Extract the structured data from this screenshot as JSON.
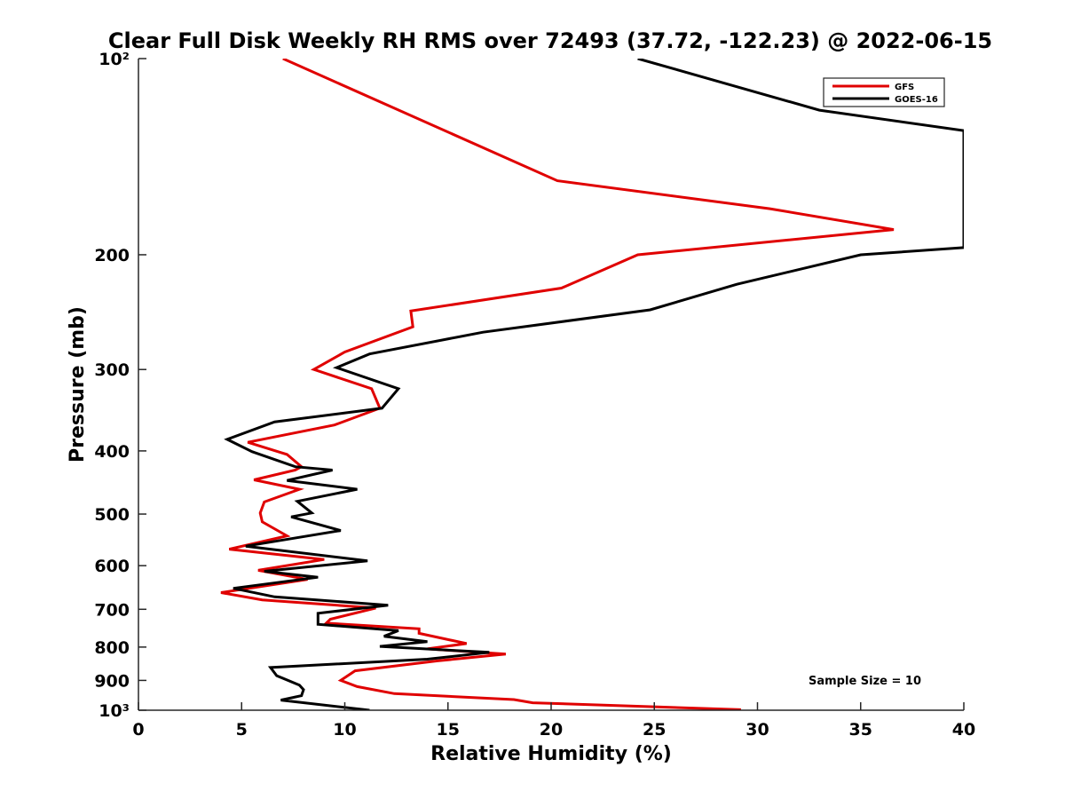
{
  "chart_data": {
    "type": "line",
    "title": "Clear Full Disk Weekly RH RMS over 72493 (37.72, -122.23) @ 2022-06-15",
    "xlabel": "Relative Humidity (%)",
    "ylabel": "Pressure (mb)",
    "xlim": [
      0,
      40
    ],
    "ylim": [
      100,
      1000
    ],
    "y_scale": "log",
    "y_reversed": true,
    "grid": false,
    "legend_position": "top-right",
    "x_ticks": [
      0,
      5,
      10,
      15,
      20,
      25,
      30,
      35,
      40
    ],
    "x_tick_labels": [
      "0",
      "5",
      "10",
      "15",
      "20",
      "25",
      "30",
      "35",
      "40"
    ],
    "y_ticks": [
      100,
      200,
      300,
      400,
      500,
      600,
      700,
      800,
      900,
      1000
    ],
    "y_tick_labels": [
      "10²",
      "200",
      "300",
      "400",
      "500",
      "600",
      "700",
      "800",
      "900",
      "10³"
    ],
    "annotation": "Sample Size = 10",
    "series": [
      {
        "name": "GFS",
        "color": "#e00000",
        "x": [
          7,
          20.3,
          30.6,
          36.6,
          24.2,
          20.5,
          13.2,
          13.3,
          10,
          8.5,
          11.3,
          11.7,
          9.5,
          5.3,
          7.2,
          7.9,
          7.6,
          5.6,
          7.8,
          6.1,
          5.9,
          6.0,
          7.2,
          4.4,
          9.0,
          5.8,
          8.2,
          4.0,
          6.0,
          11.5,
          9.3,
          9.1,
          13.6,
          13.6,
          15.9,
          14.0,
          17.8,
          14.5,
          10.5,
          9.8,
          10.6,
          12.4,
          18.2,
          19.1,
          29.2
        ],
        "y": [
          100,
          154,
          170,
          183,
          200,
          225,
          244,
          258,
          282,
          300,
          321,
          344,
          365,
          388,
          405,
          423,
          428,
          443,
          458,
          479,
          498,
          514,
          540,
          566,
          587,
          610,
          630,
          660,
          677,
          697,
          725,
          735,
          750,
          762,
          790,
          805,
          820,
          840,
          870,
          900,
          920,
          943,
          963,
          974,
          998
        ]
      },
      {
        "name": "GOES-16",
        "color": "#000000",
        "x": [
          24.2,
          33,
          40,
          40,
          35,
          29,
          24.8,
          16.7,
          11.2,
          9.6,
          12.6,
          11.8,
          6.6,
          4.3,
          5.5,
          7.6,
          9.4,
          7.2,
          10.6,
          7.7,
          8.4,
          7.4,
          9.8,
          5.2,
          11.1,
          6.1,
          8.7,
          4.6,
          6.6,
          12.1,
          8.7,
          8.7,
          12.6,
          11.9,
          14.0,
          11.7,
          17.0,
          14.0,
          6.4,
          6.7,
          7.8,
          8.0,
          7.9,
          6.9,
          11.2
        ],
        "y": [
          100,
          120,
          129,
          195,
          200,
          222,
          243,
          263,
          284,
          298,
          321,
          344,
          361,
          384,
          401,
          423,
          428,
          444,
          458,
          478,
          498,
          505,
          530,
          560,
          590,
          612,
          625,
          650,
          670,
          690,
          710,
          738,
          755,
          770,
          785,
          798,
          815,
          835,
          860,
          885,
          915,
          930,
          950,
          965,
          1000
        ]
      }
    ]
  }
}
